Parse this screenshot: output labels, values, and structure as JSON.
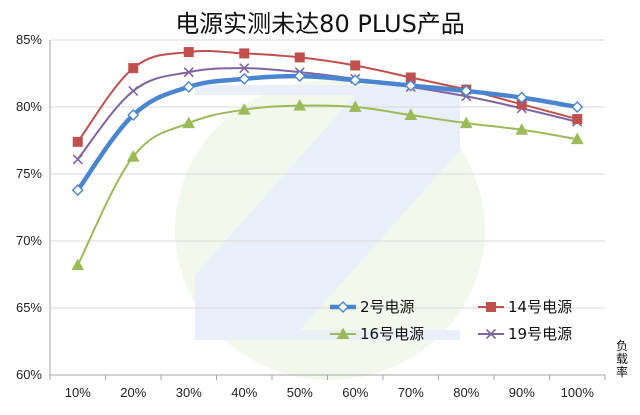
{
  "chart_data": {
    "type": "line",
    "title": "电源实测未达80 PLUS产品",
    "x_unit_label": "负载率",
    "x": [
      "10%",
      "20%",
      "30%",
      "40%",
      "50%",
      "60%",
      "70%",
      "80%",
      "90%",
      "100%"
    ],
    "y_ticks": [
      "60%",
      "65%",
      "70%",
      "75%",
      "80%",
      "85%"
    ],
    "ylim": [
      60,
      85
    ],
    "grid": "horizontal",
    "legend_position": "inside-bottom-right",
    "series": [
      {
        "name": "2号电源",
        "color": "#4a86d0",
        "marker": "diamond",
        "values": [
          73.8,
          79.4,
          81.5,
          82.1,
          82.3,
          82.0,
          81.6,
          81.2,
          80.7,
          80.0
        ]
      },
      {
        "name": "14号电源",
        "color": "#c0504d",
        "marker": "square",
        "values": [
          77.4,
          82.9,
          84.1,
          84.0,
          83.7,
          83.1,
          82.2,
          81.3,
          80.2,
          79.1
        ]
      },
      {
        "name": "16号电源",
        "color": "#9bbb59",
        "marker": "triangle",
        "values": [
          68.2,
          76.3,
          78.8,
          79.8,
          80.1,
          80.0,
          79.4,
          78.8,
          78.3,
          77.6
        ]
      },
      {
        "name": "19号电源",
        "color": "#8064a2",
        "marker": "x",
        "values": [
          76.1,
          81.2,
          82.6,
          82.9,
          82.6,
          82.1,
          81.5,
          80.8,
          79.9,
          78.9
        ]
      }
    ]
  }
}
